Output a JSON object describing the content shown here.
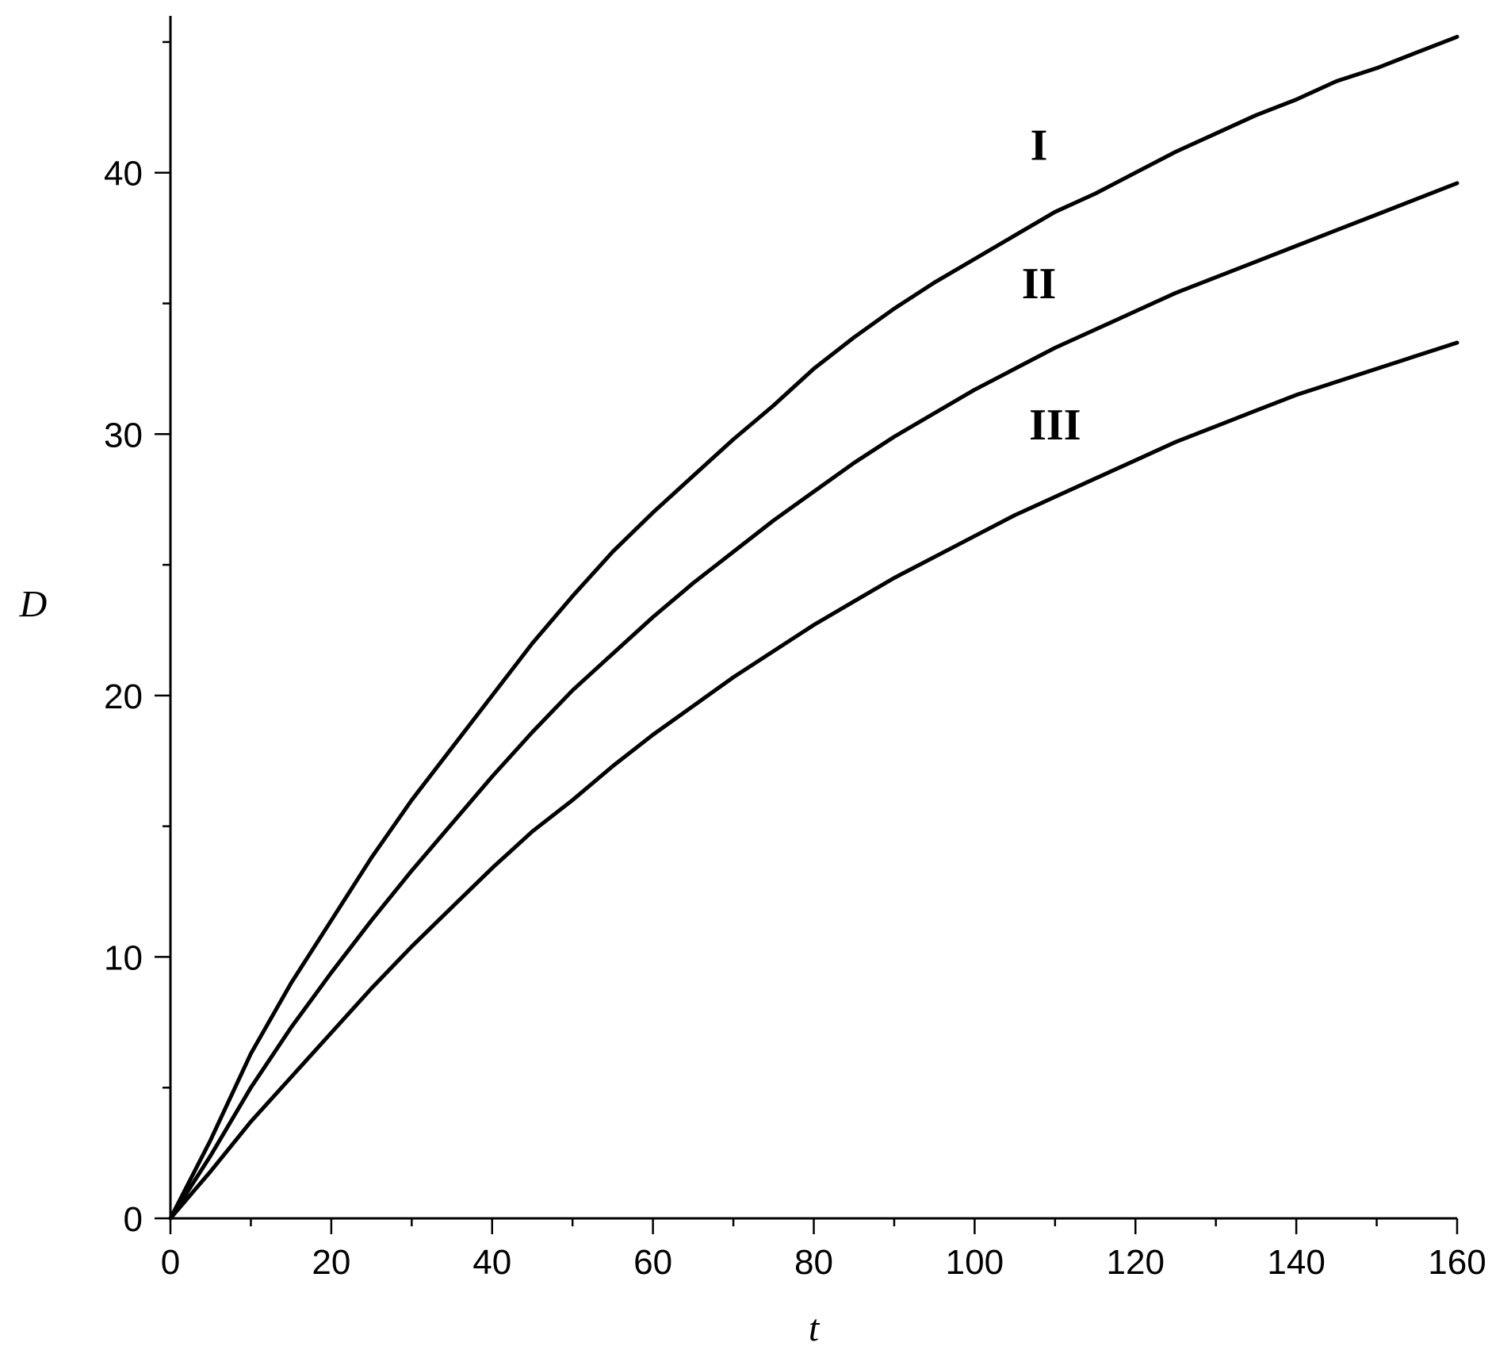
{
  "chart_data": {
    "type": "line",
    "title": "",
    "xlabel": "t",
    "ylabel": "D",
    "xlim": [
      0,
      160
    ],
    "ylim": [
      0,
      46
    ],
    "x_ticks": [
      0,
      20,
      40,
      60,
      80,
      100,
      120,
      140,
      160
    ],
    "y_ticks": [
      0,
      10,
      20,
      30,
      40
    ],
    "x_minor_step": 10,
    "y_minor_step": 5,
    "grid": false,
    "legend": "none",
    "line_color": "#000000",
    "x": [
      0,
      5,
      10,
      15,
      20,
      25,
      30,
      35,
      40,
      45,
      50,
      55,
      60,
      65,
      70,
      75,
      80,
      85,
      90,
      95,
      100,
      105,
      110,
      115,
      120,
      125,
      130,
      135,
      140,
      145,
      150,
      155,
      160
    ],
    "series": [
      {
        "name": "I",
        "label_at": [
          108,
          40.5
        ],
        "values": [
          0,
          3.0,
          6.3,
          9.0,
          11.4,
          13.8,
          16.0,
          18.0,
          20.0,
          22.0,
          23.8,
          25.5,
          27.0,
          28.4,
          29.8,
          31.1,
          32.5,
          33.7,
          34.8,
          35.8,
          36.7,
          37.6,
          38.5,
          39.2,
          40.0,
          40.8,
          41.5,
          42.2,
          42.8,
          43.5,
          44.0,
          44.6,
          45.2
        ]
      },
      {
        "name": "II",
        "label_at": [
          108,
          35.2
        ],
        "values": [
          0,
          2.4,
          5.0,
          7.3,
          9.4,
          11.4,
          13.3,
          15.1,
          16.9,
          18.6,
          20.2,
          21.6,
          23.0,
          24.3,
          25.5,
          26.7,
          27.8,
          28.9,
          29.9,
          30.8,
          31.7,
          32.5,
          33.3,
          34.0,
          34.7,
          35.4,
          36.0,
          36.6,
          37.2,
          37.8,
          38.4,
          39.0,
          39.6
        ]
      },
      {
        "name": "III",
        "label_at": [
          110,
          29.8
        ],
        "values": [
          0,
          1.8,
          3.7,
          5.4,
          7.1,
          8.8,
          10.4,
          11.9,
          13.4,
          14.8,
          16.0,
          17.3,
          18.5,
          19.6,
          20.7,
          21.7,
          22.7,
          23.6,
          24.5,
          25.3,
          26.1,
          26.9,
          27.6,
          28.3,
          29.0,
          29.7,
          30.3,
          30.9,
          31.5,
          32.0,
          32.5,
          33.0,
          33.5
        ]
      }
    ]
  }
}
